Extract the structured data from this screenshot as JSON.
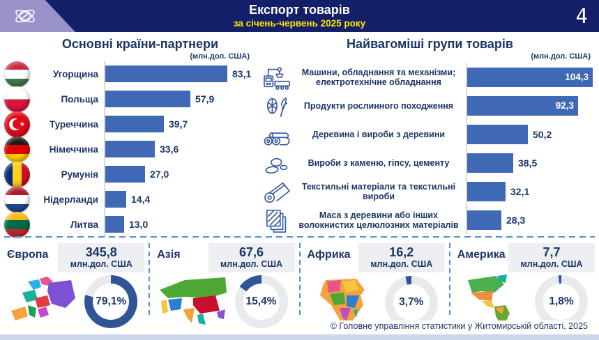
{
  "header": {
    "title": "Експорт товарів",
    "subtitle": "за січень-червень 2025 року",
    "page_number": "4"
  },
  "left_chart": {
    "title": "Основні країни-партнери",
    "unit": "(млн.дол. США)",
    "rows": [
      {
        "country": "Угорщина",
        "flag": "hungary",
        "value": "83,1",
        "value_num": 83.1
      },
      {
        "country": "Польща",
        "flag": "poland",
        "value": "57,9",
        "value_num": 57.9
      },
      {
        "country": "Туреччина",
        "flag": "turkey",
        "value": "39,7",
        "value_num": 39.7
      },
      {
        "country": "Німеччина",
        "flag": "germany",
        "value": "33,6",
        "value_num": 33.6
      },
      {
        "country": "Румунія",
        "flag": "romania",
        "value": "27,0",
        "value_num": 27.0
      },
      {
        "country": "Нідерланди",
        "flag": "netherlands",
        "value": "14,4",
        "value_num": 14.4
      },
      {
        "country": "Литва",
        "flag": "lithuania",
        "value": "13,0",
        "value_num": 13.0
      }
    ]
  },
  "right_chart": {
    "title": "Найвагоміші групи товарів",
    "unit": "(млн.дол. США)",
    "rows": [
      {
        "label": "Машини, обладнання та механізми; електротехнічне обладнання",
        "icon": "machinery",
        "value": "104,3",
        "value_num": 104.3,
        "value_inside": true
      },
      {
        "label": "Продукти рослинного походження",
        "icon": "plants",
        "value": "92,3",
        "value_num": 92.3,
        "value_inside": true
      },
      {
        "label": "Деревина і вироби з деревини",
        "icon": "wood",
        "value": "50,2",
        "value_num": 50.2,
        "value_inside": false
      },
      {
        "label": "Вироби з каменю, гіпсу, цементу",
        "icon": "stone",
        "value": "38,5",
        "value_num": 38.5,
        "value_inside": false
      },
      {
        "label": "Текстильні матеріали та текстильні вироби",
        "icon": "textile",
        "value": "32,1",
        "value_num": 32.1,
        "value_inside": false
      },
      {
        "label": "Маса з деревини або інших волокнистих целюлозних матеріалів",
        "icon": "pulp",
        "value": "28,3",
        "value_num": 28.3,
        "value_inside": false
      }
    ]
  },
  "regions": [
    {
      "name": "Європа",
      "map": "europe",
      "value": "345,8",
      "unit": "млн.дол. США",
      "percent": "79,1%",
      "percent_num": 79.1
    },
    {
      "name": "Азія",
      "map": "asia",
      "value": "67,6",
      "unit": "млн.дол. США",
      "percent": "15,4%",
      "percent_num": 15.4
    },
    {
      "name": "Африка",
      "map": "africa",
      "value": "16,2",
      "unit": "млн.дол. США",
      "percent": "3,7%",
      "percent_num": 3.7
    },
    {
      "name": "Америка",
      "map": "america",
      "value": "7,7",
      "unit": "млн.дол. США",
      "percent": "1,8%",
      "percent_num": 1.8
    }
  ],
  "footer": {
    "copyright": "© Головне управління статистики у Житомирській області, 2025"
  },
  "colors": {
    "header_bg": "#141f69",
    "logo_purple": "#9a93c9",
    "accent_bar": "#3f69b4",
    "text_navy": "#1c3667",
    "subtitle_yellow": "#ffe500",
    "donut_fill": "#2f5597",
    "donut_track": "#e8eaee",
    "dash_blue": "#4f91d3"
  },
  "chart_data": [
    {
      "type": "bar",
      "orientation": "horizontal",
      "title": "Основні країни-партнери",
      "unit": "млн.дол. США",
      "categories": [
        "Угорщина",
        "Польща",
        "Туреччина",
        "Німеччина",
        "Румунія",
        "Нідерланди",
        "Литва"
      ],
      "values": [
        83.1,
        57.9,
        39.7,
        33.6,
        27.0,
        14.4,
        13.0
      ],
      "xlim": [
        0,
        110
      ],
      "grid": false,
      "legend": "none"
    },
    {
      "type": "bar",
      "orientation": "horizontal",
      "title": "Найвагоміші групи товарів",
      "unit": "млн.дол. США",
      "categories": [
        "Машини, обладнання та механізми; електротехнічне обладнання",
        "Продукти рослинного походження",
        "Деревина і вироби з деревини",
        "Вироби з каменю, гіпсу, цементу",
        "Текстильні матеріали та текстильні вироби",
        "Маса з деревини або інших волокнистих целюлозних матеріалів"
      ],
      "values": [
        104.3,
        92.3,
        50.2,
        38.5,
        32.1,
        28.3
      ],
      "xlim": [
        0,
        110
      ],
      "grid": false,
      "legend": "none"
    },
    {
      "type": "pie",
      "title": "Експорт товарів за регіонами світу",
      "unit": "млн.дол. США",
      "categories": [
        "Європа",
        "Азія",
        "Африка",
        "Америка"
      ],
      "values": [
        345.8,
        67.6,
        16.2,
        7.7
      ],
      "percents": [
        79.1,
        15.4,
        3.7,
        1.8
      ],
      "legend": "none"
    }
  ]
}
